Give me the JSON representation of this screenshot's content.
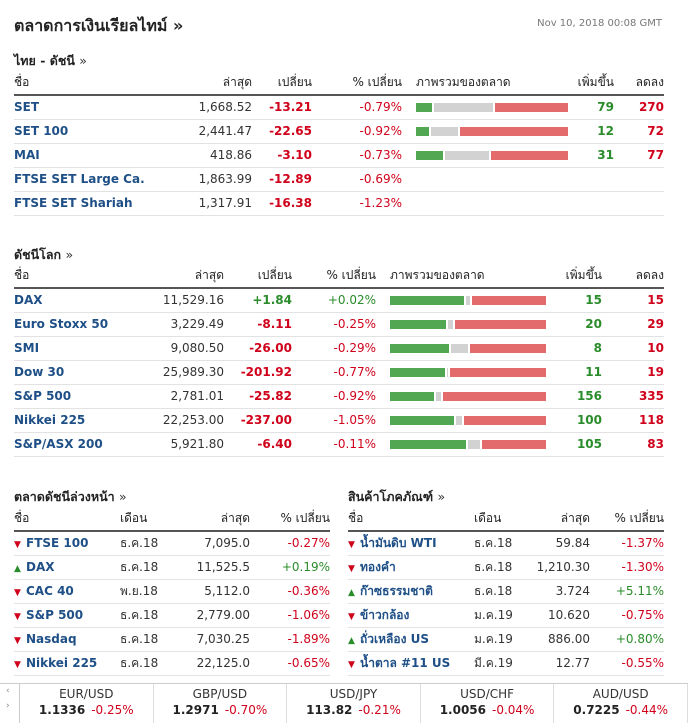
{
  "header": {
    "title": "ตลาดการเงินเรียลไทม์ »",
    "date": "Nov 10, 2018 00:08 GMT"
  },
  "colors": {
    "up": "#52a852",
    "flat": "#d2d2d2",
    "down": "#e36b6b"
  },
  "thai": {
    "title": "ไทย - ดัชนี",
    "more": "»",
    "columns": [
      "ชื่อ",
      "ล่าสุด",
      "เปลี่ยน",
      "% เปลี่ยน",
      "ภาพรวมของตลาด",
      "เพิ่มขึ้น",
      "ลดลง"
    ],
    "rows": [
      {
        "name": "SET",
        "last": "1,668.52",
        "chg": "-13.21",
        "pct": "-0.79%",
        "up": "79",
        "down": "270",
        "bar": [
          0.11,
          0.4,
          0.49
        ]
      },
      {
        "name": "SET 100",
        "last": "2,441.47",
        "chg": "-22.65",
        "pct": "-0.92%",
        "up": "12",
        "down": "72",
        "bar": [
          0.09,
          0.18,
          0.73
        ]
      },
      {
        "name": "MAI",
        "last": "418.86",
        "chg": "-3.10",
        "pct": "-0.73%",
        "up": "31",
        "down": "77",
        "bar": [
          0.18,
          0.3,
          0.52
        ]
      },
      {
        "name": "FTSE SET Large Ca.",
        "last": "1,863.99",
        "chg": "-12.89",
        "pct": "-0.69%",
        "up": "",
        "down": "",
        "bar": null
      },
      {
        "name": "FTSE SET Shariah",
        "last": "1,317.91",
        "chg": "-16.38",
        "pct": "-1.23%",
        "up": "",
        "down": "",
        "bar": null
      }
    ]
  },
  "world": {
    "title": "ดัชนีโลก",
    "more": "»",
    "columns": [
      "ชื่อ",
      "ล่าสุด",
      "เปลี่ยน",
      "% เปลี่ยน",
      "ภาพรวมของตลาด",
      "เพิ่มขึ้น",
      "ลดลง"
    ],
    "rows": [
      {
        "name": "DAX",
        "last": "11,529.16",
        "chg": "+1.84",
        "pct": "+0.02%",
        "up": "15",
        "down": "15",
        "bar": [
          0.49,
          0.02,
          0.49
        ]
      },
      {
        "name": "Euro Stoxx 50",
        "last": "3,229.49",
        "chg": "-8.11",
        "pct": "-0.25%",
        "up": "20",
        "down": "29",
        "bar": [
          0.37,
          0.03,
          0.6
        ]
      },
      {
        "name": "SMI",
        "last": "9,080.50",
        "chg": "-26.00",
        "pct": "-0.29%",
        "up": "8",
        "down": "10",
        "bar": [
          0.39,
          0.11,
          0.5
        ]
      },
      {
        "name": "Dow 30",
        "last": "25,989.30",
        "chg": "-201.92",
        "pct": "-0.77%",
        "up": "11",
        "down": "19",
        "bar": [
          0.36,
          0.01,
          0.63
        ]
      },
      {
        "name": "S&P 500",
        "last": "2,781.01",
        "chg": "-25.82",
        "pct": "-0.92%",
        "up": "156",
        "down": "335",
        "bar": [
          0.29,
          0.03,
          0.68
        ]
      },
      {
        "name": "Nikkei 225",
        "last": "22,253.00",
        "chg": "-237.00",
        "pct": "-1.05%",
        "up": "100",
        "down": "118",
        "bar": [
          0.42,
          0.04,
          0.54
        ]
      },
      {
        "name": "S&P/ASX 200",
        "last": "5,921.80",
        "chg": "-6.40",
        "pct": "-0.11%",
        "up": "105",
        "down": "83",
        "bar": [
          0.5,
          0.08,
          0.42
        ]
      }
    ]
  },
  "futures": {
    "title": "ตลาดดัชนีล่วงหน้า",
    "more": "»",
    "columns": [
      "ชื่อ",
      "เดือน",
      "ล่าสุด",
      "% เปลี่ยน"
    ],
    "rows": [
      {
        "dir": "down",
        "name": "FTSE 100",
        "month": "ธ.ค.18",
        "last": "7,095.0",
        "pct": "-0.27%"
      },
      {
        "dir": "up",
        "name": "DAX",
        "month": "ธ.ค.18",
        "last": "11,525.5",
        "pct": "+0.19%"
      },
      {
        "dir": "down",
        "name": "CAC 40",
        "month": "พ.ย.18",
        "last": "5,112.0",
        "pct": "-0.36%"
      },
      {
        "dir": "down",
        "name": "S&P 500",
        "month": "ธ.ค.18",
        "last": "2,779.00",
        "pct": "-1.06%"
      },
      {
        "dir": "down",
        "name": "Nasdaq",
        "month": "ธ.ค.18",
        "last": "7,030.25",
        "pct": "-1.89%"
      },
      {
        "dir": "down",
        "name": "Nikkei 225",
        "month": "ธ.ค.18",
        "last": "22,125.0",
        "pct": "-0.65%"
      }
    ]
  },
  "commodities": {
    "title": "สินค้าโภคภัณฑ์",
    "more": "»",
    "columns": [
      "ชื่อ",
      "เดือน",
      "ล่าสุด",
      "% เปลี่ยน"
    ],
    "rows": [
      {
        "dir": "down",
        "name": "น้ำมันดิบ WTI",
        "month": "ธ.ค.18",
        "last": "59.84",
        "pct": "-1.37%"
      },
      {
        "dir": "down",
        "name": "ทองคำ",
        "month": "ธ.ค.18",
        "last": "1,210.30",
        "pct": "-1.30%"
      },
      {
        "dir": "up",
        "name": "ก๊าซธรรมชาติ",
        "month": "ธ.ค.18",
        "last": "3.724",
        "pct": "+5.11%"
      },
      {
        "dir": "down",
        "name": "ข้าวกล้อง",
        "month": "ม.ค.19",
        "last": "10.620",
        "pct": "-0.75%"
      },
      {
        "dir": "up",
        "name": "ถั่วเหลือง US",
        "month": "ม.ค.19",
        "last": "886.00",
        "pct": "+0.80%"
      },
      {
        "dir": "down",
        "name": "น้ำตาล #11 US",
        "month": "มี.ค.19",
        "last": "12.77",
        "pct": "-0.55%"
      }
    ]
  },
  "fx": {
    "left_icons": [
      "‹",
      "›"
    ],
    "pairs": [
      {
        "pair": "EUR/USD",
        "value": "1.1336",
        "pct": "-0.25%"
      },
      {
        "pair": "GBP/USD",
        "value": "1.2971",
        "pct": "-0.70%"
      },
      {
        "pair": "USD/JPY",
        "value": "113.82",
        "pct": "-0.21%"
      },
      {
        "pair": "USD/CHF",
        "value": "1.0056",
        "pct": "-0.04%"
      },
      {
        "pair": "AUD/USD",
        "value": "0.7225",
        "pct": "-0.44%"
      }
    ]
  }
}
